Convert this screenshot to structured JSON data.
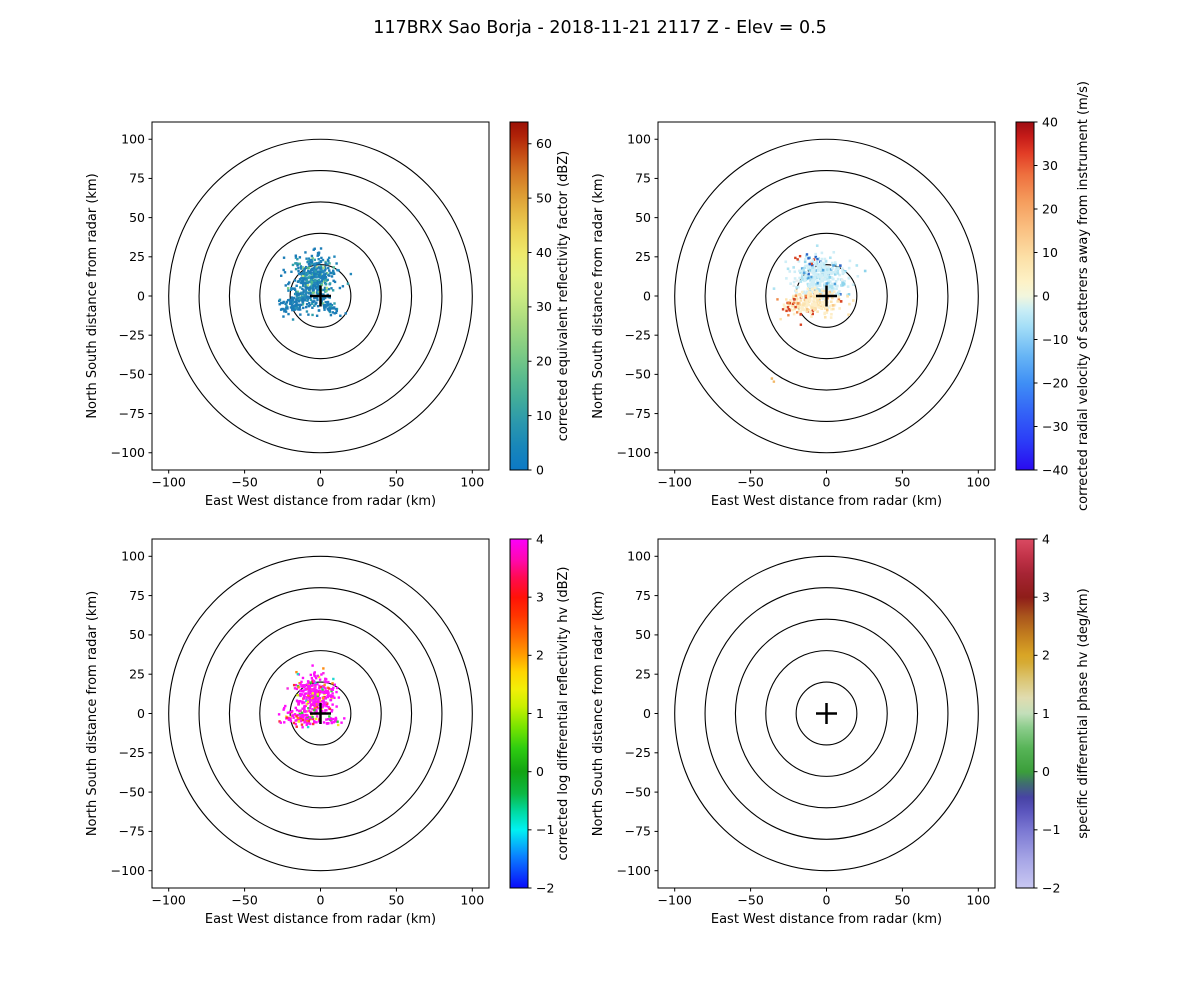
{
  "title": "117BRX Sao Borja - 2018-11-21 2117 Z -  Elev = 0.5",
  "colors": {
    "background": "#ffffff",
    "ring": "#000000",
    "marker": "#000000",
    "text": "#000000"
  },
  "chart_data": [
    {
      "id": "reflectivity",
      "type": "scatter",
      "position": "top-left",
      "xlabel": "East West distance from radar (km)",
      "ylabel": "North South distance from radar (km)",
      "xticks": [
        -100,
        -50,
        0,
        50,
        100
      ],
      "yticks": [
        100,
        75,
        50,
        25,
        0,
        -25,
        -50,
        -75,
        -100
      ],
      "xlim": [
        -111,
        111
      ],
      "ylim": [
        -111,
        111
      ],
      "grid": false,
      "range_rings_km": [
        20,
        40,
        60,
        80,
        100
      ],
      "radar_marker": {
        "x_km": 0,
        "y_km": 0,
        "symbol": "+"
      },
      "colorbar": {
        "label": "corrected equivalent reflectivity factor (dBZ)",
        "vmin": 0,
        "vmax": 64,
        "ticks": [
          0,
          10,
          20,
          30,
          40,
          50,
          60
        ],
        "gradient": [
          [
            0.0,
            "#0c79c6"
          ],
          [
            0.07,
            "#1987b9"
          ],
          [
            0.14,
            "#2c99ac"
          ],
          [
            0.2,
            "#40ab9b"
          ],
          [
            0.27,
            "#5cbc8d"
          ],
          [
            0.34,
            "#7fcc84"
          ],
          [
            0.42,
            "#a6da7f"
          ],
          [
            0.5,
            "#cdeb82"
          ],
          [
            0.56,
            "#e3f17e"
          ],
          [
            0.62,
            "#eeea6c"
          ],
          [
            0.68,
            "#ecd557"
          ],
          [
            0.74,
            "#e5b843"
          ],
          [
            0.8,
            "#dc9731"
          ],
          [
            0.86,
            "#d27122"
          ],
          [
            0.91,
            "#c44a13"
          ],
          [
            0.96,
            "#b02208"
          ],
          [
            1.0,
            "#9b1005"
          ]
        ]
      },
      "seed": 101,
      "clusters": [
        {
          "cx_km": -4,
          "cy_km": 11,
          "sx_km": 7.5,
          "sy_km": 7.5,
          "n": 430,
          "size": 2.4,
          "palette": [
            [
              "#1c7db7",
              0.58
            ],
            [
              "#2388bb",
              0.16
            ],
            [
              "#2fa0ab",
              0.1
            ],
            [
              "#4cb795",
              0.08
            ],
            [
              "#79cc85",
              0.05
            ],
            [
              "#b7e383",
              0.03
            ]
          ]
        },
        {
          "cx_km": -15,
          "cy_km": -4,
          "sx_km": 6,
          "sy_km": 3.2,
          "n": 120,
          "size": 2.4,
          "palette": [
            [
              "#1c7db7",
              0.85
            ],
            [
              "#2a93b3",
              0.15
            ]
          ]
        },
        {
          "cx_km": 6,
          "cy_km": -7,
          "sx_km": 4,
          "sy_km": 2.5,
          "n": 40,
          "size": 2.4,
          "palette": [
            [
              "#1c7db7",
              0.9
            ],
            [
              "#2fa0ab",
              0.1
            ]
          ]
        },
        {
          "cx_km": -3,
          "cy_km": 27,
          "sx_km": 1.2,
          "sy_km": 1.8,
          "n": 6,
          "size": 2.4,
          "palette": [
            [
              "#1c7db7",
              1
            ]
          ]
        },
        {
          "cx_km": -24,
          "cy_km": -10,
          "sx_km": 1.5,
          "sy_km": 1.5,
          "n": 5,
          "size": 2.4,
          "palette": [
            [
              "#1c7db7",
              1
            ]
          ]
        }
      ]
    },
    {
      "id": "velocity",
      "type": "scatter",
      "position": "top-right",
      "xlabel": "East West distance from radar (km)",
      "ylabel": "North South distance from radar (km)",
      "xticks": [
        -100,
        -50,
        0,
        50,
        100
      ],
      "yticks": [
        100,
        75,
        50,
        25,
        0,
        -25,
        -50,
        -75,
        -100
      ],
      "xlim": [
        -111,
        111
      ],
      "ylim": [
        -111,
        111
      ],
      "grid": false,
      "range_rings_km": [
        20,
        40,
        60,
        80,
        100
      ],
      "radar_marker": {
        "x_km": 0,
        "y_km": 0,
        "symbol": "+"
      },
      "colorbar": {
        "label": "corrected radial velocity of scatterers away from instrument (m/s)",
        "vmin": -40,
        "vmax": 40,
        "ticks": [
          -40,
          -30,
          -20,
          -10,
          0,
          10,
          20,
          30,
          40
        ],
        "gradient": [
          [
            0.0,
            "#2a0af0"
          ],
          [
            0.08,
            "#2b3bf7"
          ],
          [
            0.17,
            "#3465f7"
          ],
          [
            0.25,
            "#3f8ff5"
          ],
          [
            0.33,
            "#68b6f5"
          ],
          [
            0.41,
            "#a2ddf7"
          ],
          [
            0.46,
            "#c9eef5"
          ],
          [
            0.5,
            "#f2f6dd"
          ],
          [
            0.54,
            "#fdf2c7"
          ],
          [
            0.61,
            "#fce0a7"
          ],
          [
            0.69,
            "#fac183"
          ],
          [
            0.77,
            "#f59e5e"
          ],
          [
            0.85,
            "#ee6f3e"
          ],
          [
            0.91,
            "#e23d26"
          ],
          [
            0.96,
            "#c41a18"
          ],
          [
            1.0,
            "#9e0d13"
          ]
        ]
      },
      "seed": 202,
      "clusters": [
        {
          "cx_km": -3,
          "cy_km": 12,
          "sx_km": 8.5,
          "sy_km": 6.5,
          "n": 360,
          "size": 2.6,
          "palette": [
            [
              "#cfeef7",
              0.62
            ],
            [
              "#aee3f2",
              0.2
            ],
            [
              "#8ed4ec",
              0.08
            ],
            [
              "#4fa3dc",
              0.04
            ],
            [
              "#2b66c8",
              0.03
            ],
            [
              "#e6eef0",
              0.03
            ]
          ]
        },
        {
          "cx_km": -9,
          "cy_km": -4,
          "sx_km": 8,
          "sy_km": 4,
          "n": 220,
          "size": 2.6,
          "palette": [
            [
              "#fdeec8",
              0.62
            ],
            [
              "#fce3ae",
              0.22
            ],
            [
              "#f9c887",
              0.08
            ],
            [
              "#ef8a4a",
              0.04
            ],
            [
              "#d84424",
              0.04
            ]
          ]
        },
        {
          "cx_km": -22,
          "cy_km": -5,
          "sx_km": 3.5,
          "sy_km": 4.5,
          "n": 26,
          "size": 2.4,
          "palette": [
            [
              "#d84424",
              0.4
            ],
            [
              "#ef8a4a",
              0.3
            ],
            [
              "#fce3ae",
              0.3
            ]
          ]
        },
        {
          "cx_km": -13,
          "cy_km": 22,
          "sx_km": 4,
          "sy_km": 3,
          "n": 14,
          "size": 2.4,
          "palette": [
            [
              "#d84424",
              0.35
            ],
            [
              "#2b66c8",
              0.35
            ],
            [
              "#cfeef7",
              0.3
            ]
          ]
        },
        {
          "cx_km": -36,
          "cy_km": -53,
          "sx_km": 1.2,
          "sy_km": 1,
          "n": 3,
          "size": 2.4,
          "palette": [
            [
              "#f2b868",
              0.5
            ],
            [
              "#bfeaf2",
              0.5
            ]
          ]
        }
      ]
    },
    {
      "id": "differential_reflectivity",
      "type": "scatter",
      "position": "bottom-left",
      "xlabel": "East West distance from radar (km)",
      "ylabel": "North South distance from radar (km)",
      "xticks": [
        -100,
        -50,
        0,
        50,
        100
      ],
      "yticks": [
        100,
        75,
        50,
        25,
        0,
        -25,
        -50,
        -75,
        -100
      ],
      "xlim": [
        -111,
        111
      ],
      "ylim": [
        -111,
        111
      ],
      "grid": false,
      "range_rings_km": [
        20,
        40,
        60,
        80,
        100
      ],
      "radar_marker": {
        "x_km": 0,
        "y_km": 0,
        "symbol": "+"
      },
      "colorbar": {
        "label": "corrected log differential reflectivity hv (dBZ)",
        "vmin": -2,
        "vmax": 4,
        "ticks": [
          -2,
          -1,
          0,
          1,
          2,
          3,
          4
        ],
        "gradient": [
          [
            0.0,
            "#0a0afa"
          ],
          [
            0.09,
            "#0a80ff"
          ],
          [
            0.167,
            "#00f2f2"
          ],
          [
            0.22,
            "#00d9a0"
          ],
          [
            0.27,
            "#0cb844"
          ],
          [
            0.333,
            "#12a312"
          ],
          [
            0.4,
            "#2ecc10"
          ],
          [
            0.46,
            "#77e400"
          ],
          [
            0.52,
            "#c8f000"
          ],
          [
            0.57,
            "#f2ef08"
          ],
          [
            0.62,
            "#ffd400"
          ],
          [
            0.667,
            "#ff9e00"
          ],
          [
            0.72,
            "#ff6a00"
          ],
          [
            0.78,
            "#ff3500"
          ],
          [
            0.833,
            "#ff1207"
          ],
          [
            0.89,
            "#ff0a52"
          ],
          [
            0.94,
            "#ff07ae"
          ],
          [
            1.0,
            "#fb00fb"
          ]
        ]
      },
      "seed": 303,
      "clusters": [
        {
          "cx_km": -4,
          "cy_km": 10,
          "sx_km": 6.5,
          "sy_km": 6.8,
          "n": 330,
          "size": 2.4,
          "palette": [
            [
              "#ff10fb",
              0.62
            ],
            [
              "#f52ce0",
              0.12
            ],
            [
              "#ff3038",
              0.07
            ],
            [
              "#ff8c12",
              0.06
            ],
            [
              "#f2ee20",
              0.05
            ],
            [
              "#30d830",
              0.04
            ],
            [
              "#20d8d0",
              0.04
            ]
          ]
        },
        {
          "cx_km": -12,
          "cy_km": -3,
          "sx_km": 6.5,
          "sy_km": 2.2,
          "n": 80,
          "size": 2.4,
          "palette": [
            [
              "#ff10fb",
              0.72
            ],
            [
              "#ff3038",
              0.08
            ],
            [
              "#ff8c12",
              0.08
            ],
            [
              "#f2ee20",
              0.06
            ],
            [
              "#30d830",
              0.06
            ]
          ]
        },
        {
          "cx_km": 7,
          "cy_km": -5,
          "sx_km": 3.5,
          "sy_km": 1.6,
          "n": 24,
          "size": 2.4,
          "palette": [
            [
              "#ff10fb",
              0.8
            ],
            [
              "#f2ee20",
              0.1
            ],
            [
              "#30d830",
              0.1
            ]
          ]
        },
        {
          "cx_km": -23,
          "cy_km": 3,
          "sx_km": 1,
          "sy_km": 1,
          "n": 3,
          "size": 2.4,
          "palette": [
            [
              "#ff10fb",
              1
            ]
          ]
        }
      ]
    },
    {
      "id": "specific_differential_phase",
      "type": "scatter",
      "position": "bottom-right",
      "xlabel": "East West distance from radar (km)",
      "ylabel": "North South distance from radar (km)",
      "xticks": [
        -100,
        -50,
        0,
        50,
        100
      ],
      "yticks": [
        100,
        75,
        50,
        25,
        0,
        -25,
        -50,
        -75,
        -100
      ],
      "xlim": [
        -111,
        111
      ],
      "ylim": [
        -111,
        111
      ],
      "grid": false,
      "range_rings_km": [
        20,
        40,
        60,
        80,
        100
      ],
      "radar_marker": {
        "x_km": 0,
        "y_km": 0,
        "symbol": "+"
      },
      "colorbar": {
        "label": "specific differential phase hv (deg/km)",
        "vmin": -2,
        "vmax": 4,
        "ticks": [
          -2,
          -1,
          0,
          1,
          2,
          3,
          4
        ],
        "gradient": [
          [
            0.0,
            "#c9c8f2"
          ],
          [
            0.08,
            "#a7a6e6"
          ],
          [
            0.167,
            "#7a77d2"
          ],
          [
            0.22,
            "#5b55bd"
          ],
          [
            0.26,
            "#4743a4"
          ],
          [
            0.3,
            "#3f6f6e"
          ],
          [
            0.333,
            "#3b9e3b"
          ],
          [
            0.4,
            "#57b457"
          ],
          [
            0.46,
            "#8ccd8c"
          ],
          [
            0.5,
            "#c3dfba"
          ],
          [
            0.545,
            "#e0dcaf"
          ],
          [
            0.6,
            "#dbc470"
          ],
          [
            0.645,
            "#d6ab35"
          ],
          [
            0.667,
            "#d9a526"
          ],
          [
            0.72,
            "#c4811f"
          ],
          [
            0.78,
            "#a9541c"
          ],
          [
            0.833,
            "#8e1d19"
          ],
          [
            0.9,
            "#a62434"
          ],
          [
            0.95,
            "#c23349"
          ],
          [
            1.0,
            "#da4a62"
          ]
        ]
      },
      "seed": 404,
      "clusters": []
    }
  ]
}
